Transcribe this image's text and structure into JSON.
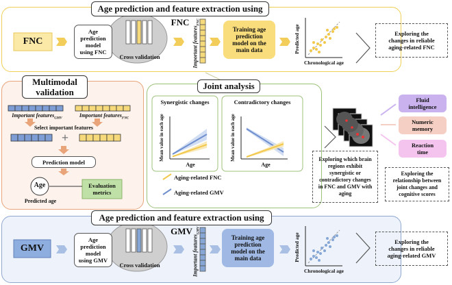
{
  "top": {
    "title": "Age prediction and feature extraction using FNC",
    "source": "FNC",
    "model_line1": "Age",
    "model_line2": "prediction",
    "model_line3": "model",
    "model_line4": "using FNC",
    "cv": "Cross validation",
    "features": "Important features",
    "features_sub": "FNC",
    "training_line1": "Training age",
    "training_line2": "prediction",
    "training_line3": "model on the",
    "training_line4": "main data",
    "scatter_y": "Predicted age",
    "scatter_x": "Chronological age",
    "explore_line1": "Exploring the",
    "explore_line2": "changes in reliable",
    "explore_line3": "aging-related FNC"
  },
  "multimodal": {
    "title_line1": "Multimodal",
    "title_line2": "validation",
    "gmv_label": "Important features",
    "gmv_sub": "GMV",
    "fnc_label": "Important features",
    "fnc_sub": "FNC",
    "select": "Select important features",
    "plus": "+",
    "prediction_model": "Prediction model",
    "age": "Age",
    "predicted_age": "Predicted age",
    "eval_line1": "Evaluation",
    "eval_line2": "metrics"
  },
  "joint": {
    "title": "Joint analysis",
    "synergistic": "Synergistic changes",
    "contradictory": "Contradictory changes",
    "ylabel": "Mean value in each age",
    "xlabel": "Age",
    "legend_fnc": "Aging-related FNC",
    "legend_gmv": "Aging-related GMV"
  },
  "brain_box": {
    "l1": "Exploring which brain",
    "l2": "regions exhibit",
    "l3": "synergistic or",
    "l4": "contradictory changes",
    "l5": "in FNC and GMV with",
    "l6": "aging"
  },
  "cognition": {
    "fluid_line1": "Fluid",
    "fluid_line2": "intelligence",
    "numeric_line1": "Numeric",
    "numeric_line2": "memory",
    "reaction_line1": "Reaction",
    "reaction_line2": "time",
    "explore_line1": "Exploring the",
    "explore_line2": "relationship between",
    "explore_line3": "joint changes and",
    "explore_line4": "cognitive scores"
  },
  "bottom": {
    "title": "Age prediction and feature extraction using GMV",
    "source": "GMV",
    "model_line1": "Age",
    "model_line2": "prediction",
    "model_line3": "model",
    "model_line4": "using GMV",
    "cv": "Cross validation",
    "features": "Important features",
    "features_sub": "GMV",
    "training_line1": "Training age",
    "training_line2": "prediction",
    "training_line3": "model on the",
    "training_line4": "main data",
    "scatter_y": "Predicted age",
    "scatter_x": "Chronological age",
    "explore_line1": "Exploring the",
    "explore_line2": "changes in reliable",
    "explore_line3": "aging-related GMV"
  },
  "colors": {
    "fnc": "#f5d97a",
    "gmv": "#86a6d6",
    "green": "#8fb56a",
    "orange": "#e6a57a",
    "fluid": "#c9b2ee",
    "numeric": "#f6cfc4",
    "reaction": "#f4c4ee"
  }
}
